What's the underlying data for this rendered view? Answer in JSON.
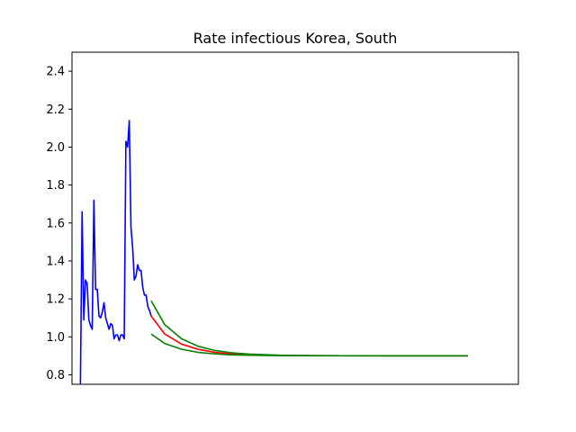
{
  "chart_data": {
    "type": "line",
    "title": "Rate infectious Korea, South",
    "xlabel": "",
    "ylabel": "",
    "xlim": [
      -5,
      260
    ],
    "ylim": [
      0.75,
      2.5
    ],
    "yticks": [
      0.8,
      1.0,
      1.2,
      1.4,
      1.6,
      1.8,
      2.0,
      2.2,
      2.4
    ],
    "x_ticks_shown": false,
    "grid": false,
    "series": [
      {
        "role": "observed",
        "color": "#0000ff",
        "points": [
          [
            0,
            0.75
          ],
          [
            1,
            1.66
          ],
          [
            2,
            1.09
          ],
          [
            3,
            1.3
          ],
          [
            4,
            1.28
          ],
          [
            5,
            1.09
          ],
          [
            6,
            1.06
          ],
          [
            7,
            1.04
          ],
          [
            8,
            1.72
          ],
          [
            9,
            1.25
          ],
          [
            10,
            1.25
          ],
          [
            11,
            1.11
          ],
          [
            12,
            1.1
          ],
          [
            13,
            1.13
          ],
          [
            14,
            1.18
          ],
          [
            15,
            1.1
          ],
          [
            16,
            1.07
          ],
          [
            17,
            1.04
          ],
          [
            18,
            1.07
          ],
          [
            19,
            1.06
          ],
          [
            20,
            0.99
          ],
          [
            21,
            1.01
          ],
          [
            22,
            1.01
          ],
          [
            23,
            0.98
          ],
          [
            24,
            1.01
          ],
          [
            25,
            1.01
          ],
          [
            26,
            0.99
          ],
          [
            27,
            2.03
          ],
          [
            28,
            2.0
          ],
          [
            29,
            2.14
          ],
          [
            30,
            1.58
          ],
          [
            31,
            1.47
          ],
          [
            32,
            1.3
          ],
          [
            33,
            1.32
          ],
          [
            34,
            1.38
          ],
          [
            35,
            1.35
          ],
          [
            36,
            1.35
          ],
          [
            37,
            1.26
          ],
          [
            38,
            1.22
          ],
          [
            39,
            1.22
          ],
          [
            40,
            1.16
          ],
          [
            41,
            1.14
          ],
          [
            42,
            1.11
          ]
        ]
      },
      {
        "role": "forecast",
        "color": "#ff0000",
        "points": [
          [
            42,
            1.11
          ],
          [
            50,
            1.015
          ],
          [
            60,
            0.962
          ],
          [
            70,
            0.934
          ],
          [
            80,
            0.918
          ],
          [
            90,
            0.91
          ],
          [
            100,
            0.906
          ],
          [
            120,
            0.902
          ],
          [
            140,
            0.901
          ],
          [
            180,
            0.9
          ],
          [
            230,
            0.9
          ]
        ]
      },
      {
        "role": "forecast-upper",
        "color": "#008000",
        "points": [
          [
            42,
            1.19
          ],
          [
            50,
            1.065
          ],
          [
            60,
            0.99
          ],
          [
            70,
            0.95
          ],
          [
            80,
            0.928
          ],
          [
            90,
            0.916
          ],
          [
            100,
            0.909
          ],
          [
            120,
            0.903
          ],
          [
            140,
            0.901
          ],
          [
            180,
            0.9
          ],
          [
            230,
            0.9
          ]
        ]
      },
      {
        "role": "forecast-lower",
        "color": "#008000",
        "points": [
          [
            42,
            1.015
          ],
          [
            50,
            0.965
          ],
          [
            60,
            0.935
          ],
          [
            70,
            0.918
          ],
          [
            80,
            0.91
          ],
          [
            90,
            0.905
          ],
          [
            100,
            0.903
          ],
          [
            120,
            0.901
          ],
          [
            140,
            0.9
          ],
          [
            180,
            0.9
          ],
          [
            230,
            0.9
          ]
        ]
      }
    ]
  }
}
